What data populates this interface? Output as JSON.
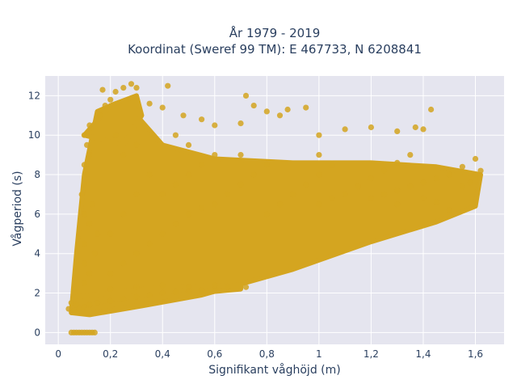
{
  "chart_data": {
    "type": "scatter",
    "title_line1": "År 1979 - 2019",
    "title_line2": "Koordinat (Sweref 99 TM): E 467733, N 6208841",
    "xlabel": "Signifikant våghöjd (m)",
    "ylabel": "Vågperiod (s)",
    "xlim": [
      -0.05,
      1.71
    ],
    "ylim": [
      -0.6,
      13.0
    ],
    "x_ticks": [
      0,
      0.2,
      0.4,
      0.6,
      0.8,
      1,
      1.2,
      1.4,
      1.6
    ],
    "x_tick_labels": [
      "0",
      "0,2",
      "0,4",
      "0,6",
      "0,8",
      "1",
      "1,2",
      "1,4",
      "1,6"
    ],
    "y_ticks": [
      0,
      2,
      4,
      6,
      8,
      10,
      12
    ],
    "y_tick_labels": [
      "0",
      "2",
      "4",
      "6",
      "8",
      "10",
      "12"
    ],
    "grid": true,
    "marker_color": "#D4A520",
    "background_color": "#E5E5EF",
    "points": [
      [
        0.05,
        0
      ],
      [
        0.06,
        0
      ],
      [
        0.07,
        0
      ],
      [
        0.08,
        0
      ],
      [
        0.09,
        0
      ],
      [
        0.1,
        0
      ],
      [
        0.11,
        0
      ],
      [
        0.12,
        0
      ],
      [
        0.13,
        0
      ],
      [
        0.14,
        0
      ],
      [
        0.04,
        1.2
      ],
      [
        0.05,
        1.5
      ],
      [
        0.06,
        1.1
      ],
      [
        0.07,
        1.4
      ],
      [
        0.08,
        1.2
      ],
      [
        0.1,
        1.3
      ],
      [
        0.12,
        1.4
      ],
      [
        0.15,
        1.5
      ],
      [
        0.2,
        1.6
      ],
      [
        0.25,
        1.7
      ],
      [
        0.3,
        1.8
      ],
      [
        0.35,
        1.9
      ],
      [
        0.4,
        2.0
      ],
      [
        0.45,
        2.05
      ],
      [
        0.5,
        2.1
      ],
      [
        0.55,
        2.15
      ],
      [
        0.6,
        2.2
      ],
      [
        0.65,
        2.3
      ],
      [
        0.72,
        2.3
      ],
      [
        0.2,
        2.2
      ],
      [
        0.3,
        2.3
      ],
      [
        0.4,
        2.4
      ],
      [
        0.5,
        2.3
      ],
      [
        0.6,
        2.4
      ],
      [
        0.1,
        2.5
      ],
      [
        0.12,
        3.0
      ],
      [
        0.1,
        3.5
      ],
      [
        0.14,
        4.0
      ],
      [
        0.1,
        4.5
      ],
      [
        0.15,
        5.0
      ],
      [
        0.12,
        5.5
      ],
      [
        0.1,
        6.0
      ],
      [
        0.13,
        6.5
      ],
      [
        0.09,
        7.0
      ],
      [
        0.1,
        7.5
      ],
      [
        0.11,
        8.0
      ],
      [
        0.1,
        8.5
      ],
      [
        0.12,
        9.0
      ],
      [
        0.11,
        9.5
      ],
      [
        0.1,
        10.0
      ],
      [
        0.12,
        10.5
      ],
      [
        0.16,
        11.0
      ],
      [
        0.18,
        11.5
      ],
      [
        0.2,
        11.8
      ],
      [
        0.17,
        12.3
      ],
      [
        0.22,
        12.2
      ],
      [
        0.25,
        12.4
      ],
      [
        0.28,
        12.6
      ],
      [
        0.3,
        12.4
      ],
      [
        0.42,
        12.5
      ],
      [
        0.35,
        11.6
      ],
      [
        0.4,
        11.4
      ],
      [
        0.48,
        11.0
      ],
      [
        0.55,
        10.8
      ],
      [
        0.6,
        10.5
      ],
      [
        0.7,
        10.6
      ],
      [
        0.75,
        11.5
      ],
      [
        0.72,
        12.0
      ],
      [
        0.8,
        11.2
      ],
      [
        0.85,
        11.0
      ],
      [
        0.88,
        11.3
      ],
      [
        0.95,
        11.4
      ],
      [
        1.0,
        10.0
      ],
      [
        1.1,
        10.3
      ],
      [
        1.2,
        10.4
      ],
      [
        1.3,
        10.2
      ],
      [
        1.37,
        10.4
      ],
      [
        1.43,
        11.3
      ],
      [
        1.4,
        10.3
      ],
      [
        0.2,
        3.0
      ],
      [
        0.25,
        3.5
      ],
      [
        0.3,
        4.0
      ],
      [
        0.35,
        4.5
      ],
      [
        0.4,
        5.0
      ],
      [
        0.45,
        5.5
      ],
      [
        0.5,
        6.0
      ],
      [
        0.55,
        6.3
      ],
      [
        0.2,
        5.0
      ],
      [
        0.25,
        6.0
      ],
      [
        0.3,
        7.0
      ],
      [
        0.35,
        8.0
      ],
      [
        0.25,
        9.0
      ],
      [
        0.3,
        9.5
      ],
      [
        0.22,
        10.0
      ],
      [
        0.4,
        7.0
      ],
      [
        0.45,
        7.5
      ],
      [
        0.5,
        8.0
      ],
      [
        0.55,
        8.5
      ],
      [
        0.6,
        9.0
      ],
      [
        0.5,
        9.5
      ],
      [
        0.45,
        10.0
      ],
      [
        0.6,
        6.5
      ],
      [
        0.65,
        7.0
      ],
      [
        0.7,
        7.5
      ],
      [
        0.75,
        8.0
      ],
      [
        0.8,
        8.5
      ],
      [
        0.7,
        9.0
      ],
      [
        0.8,
        6.0
      ],
      [
        0.85,
        6.5
      ],
      [
        0.9,
        7.0
      ],
      [
        0.95,
        7.5
      ],
      [
        1.0,
        8.0
      ],
      [
        1.05,
        8.5
      ],
      [
        1.0,
        9.0
      ],
      [
        1.0,
        6.5
      ],
      [
        1.05,
        6.8
      ],
      [
        1.1,
        7.0
      ],
      [
        1.15,
        7.4
      ],
      [
        1.2,
        7.8
      ],
      [
        1.25,
        8.2
      ],
      [
        1.3,
        8.6
      ],
      [
        1.35,
        9.0
      ],
      [
        1.2,
        6.8
      ],
      [
        1.25,
        7.0
      ],
      [
        1.3,
        7.2
      ],
      [
        1.35,
        7.4
      ],
      [
        1.4,
        7.6
      ],
      [
        1.45,
        7.8
      ],
      [
        1.5,
        8.0
      ],
      [
        1.55,
        8.4
      ],
      [
        1.6,
        8.8
      ],
      [
        1.62,
        8.2
      ],
      [
        1.3,
        6.5
      ],
      [
        1.4,
        6.8
      ],
      [
        1.45,
        6.6
      ],
      [
        1.5,
        6.2
      ],
      [
        1.55,
        7.4
      ],
      [
        1.6,
        8.0
      ],
      [
        1.58,
        7.6
      ]
    ]
  }
}
